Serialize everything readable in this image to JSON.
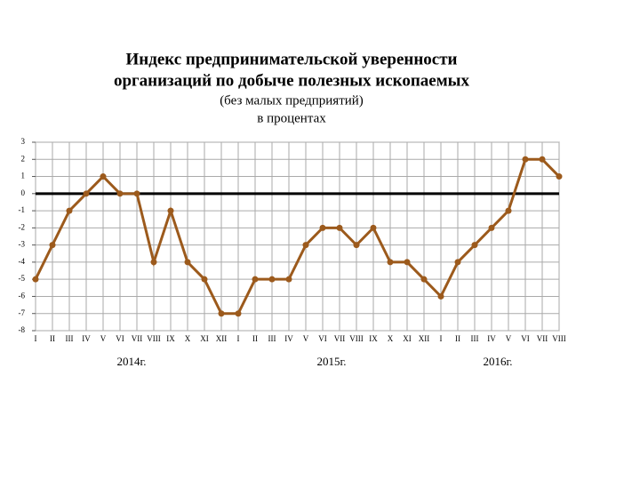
{
  "chart_data": {
    "type": "line",
    "title": [
      "Индекс предпринимательской уверенности",
      "организаций по добыче полезных ископаемых"
    ],
    "subtitle": [
      "(без малых предприятий)",
      "в процентах"
    ],
    "categories": [
      "I",
      "II",
      "III",
      "IV",
      "V",
      "VI",
      "VII",
      "VIII",
      "IX",
      "X",
      "XI",
      "XII",
      "I",
      "II",
      "III",
      "IV",
      "V",
      "VI",
      "VII",
      "VIII",
      "IX",
      "X",
      "XI",
      "XII",
      "I",
      "II",
      "III",
      "IV",
      "V",
      "VI",
      "VII",
      "VIII"
    ],
    "year_labels": [
      "2014г.",
      "2015г.",
      "2016г."
    ],
    "series": [
      {
        "name": "Индекс предпринимательской уверенности",
        "color": "#9c5a1c",
        "values": [
          -5,
          -3,
          -1,
          0,
          1,
          0,
          0,
          -4,
          -1,
          -4,
          -5,
          -7,
          -7,
          -5,
          -5,
          -5,
          -3,
          -2,
          -2,
          -3,
          -2,
          -4,
          -4,
          -5,
          -6,
          -4,
          -3,
          -2,
          -1,
          2,
          2,
          1
        ]
      }
    ],
    "ylim": [
      -8,
      3
    ],
    "yticks": [
      -8,
      -7,
      -6,
      -5,
      -4,
      -3,
      -2,
      -1,
      0,
      1,
      2,
      3
    ],
    "grid": true
  }
}
